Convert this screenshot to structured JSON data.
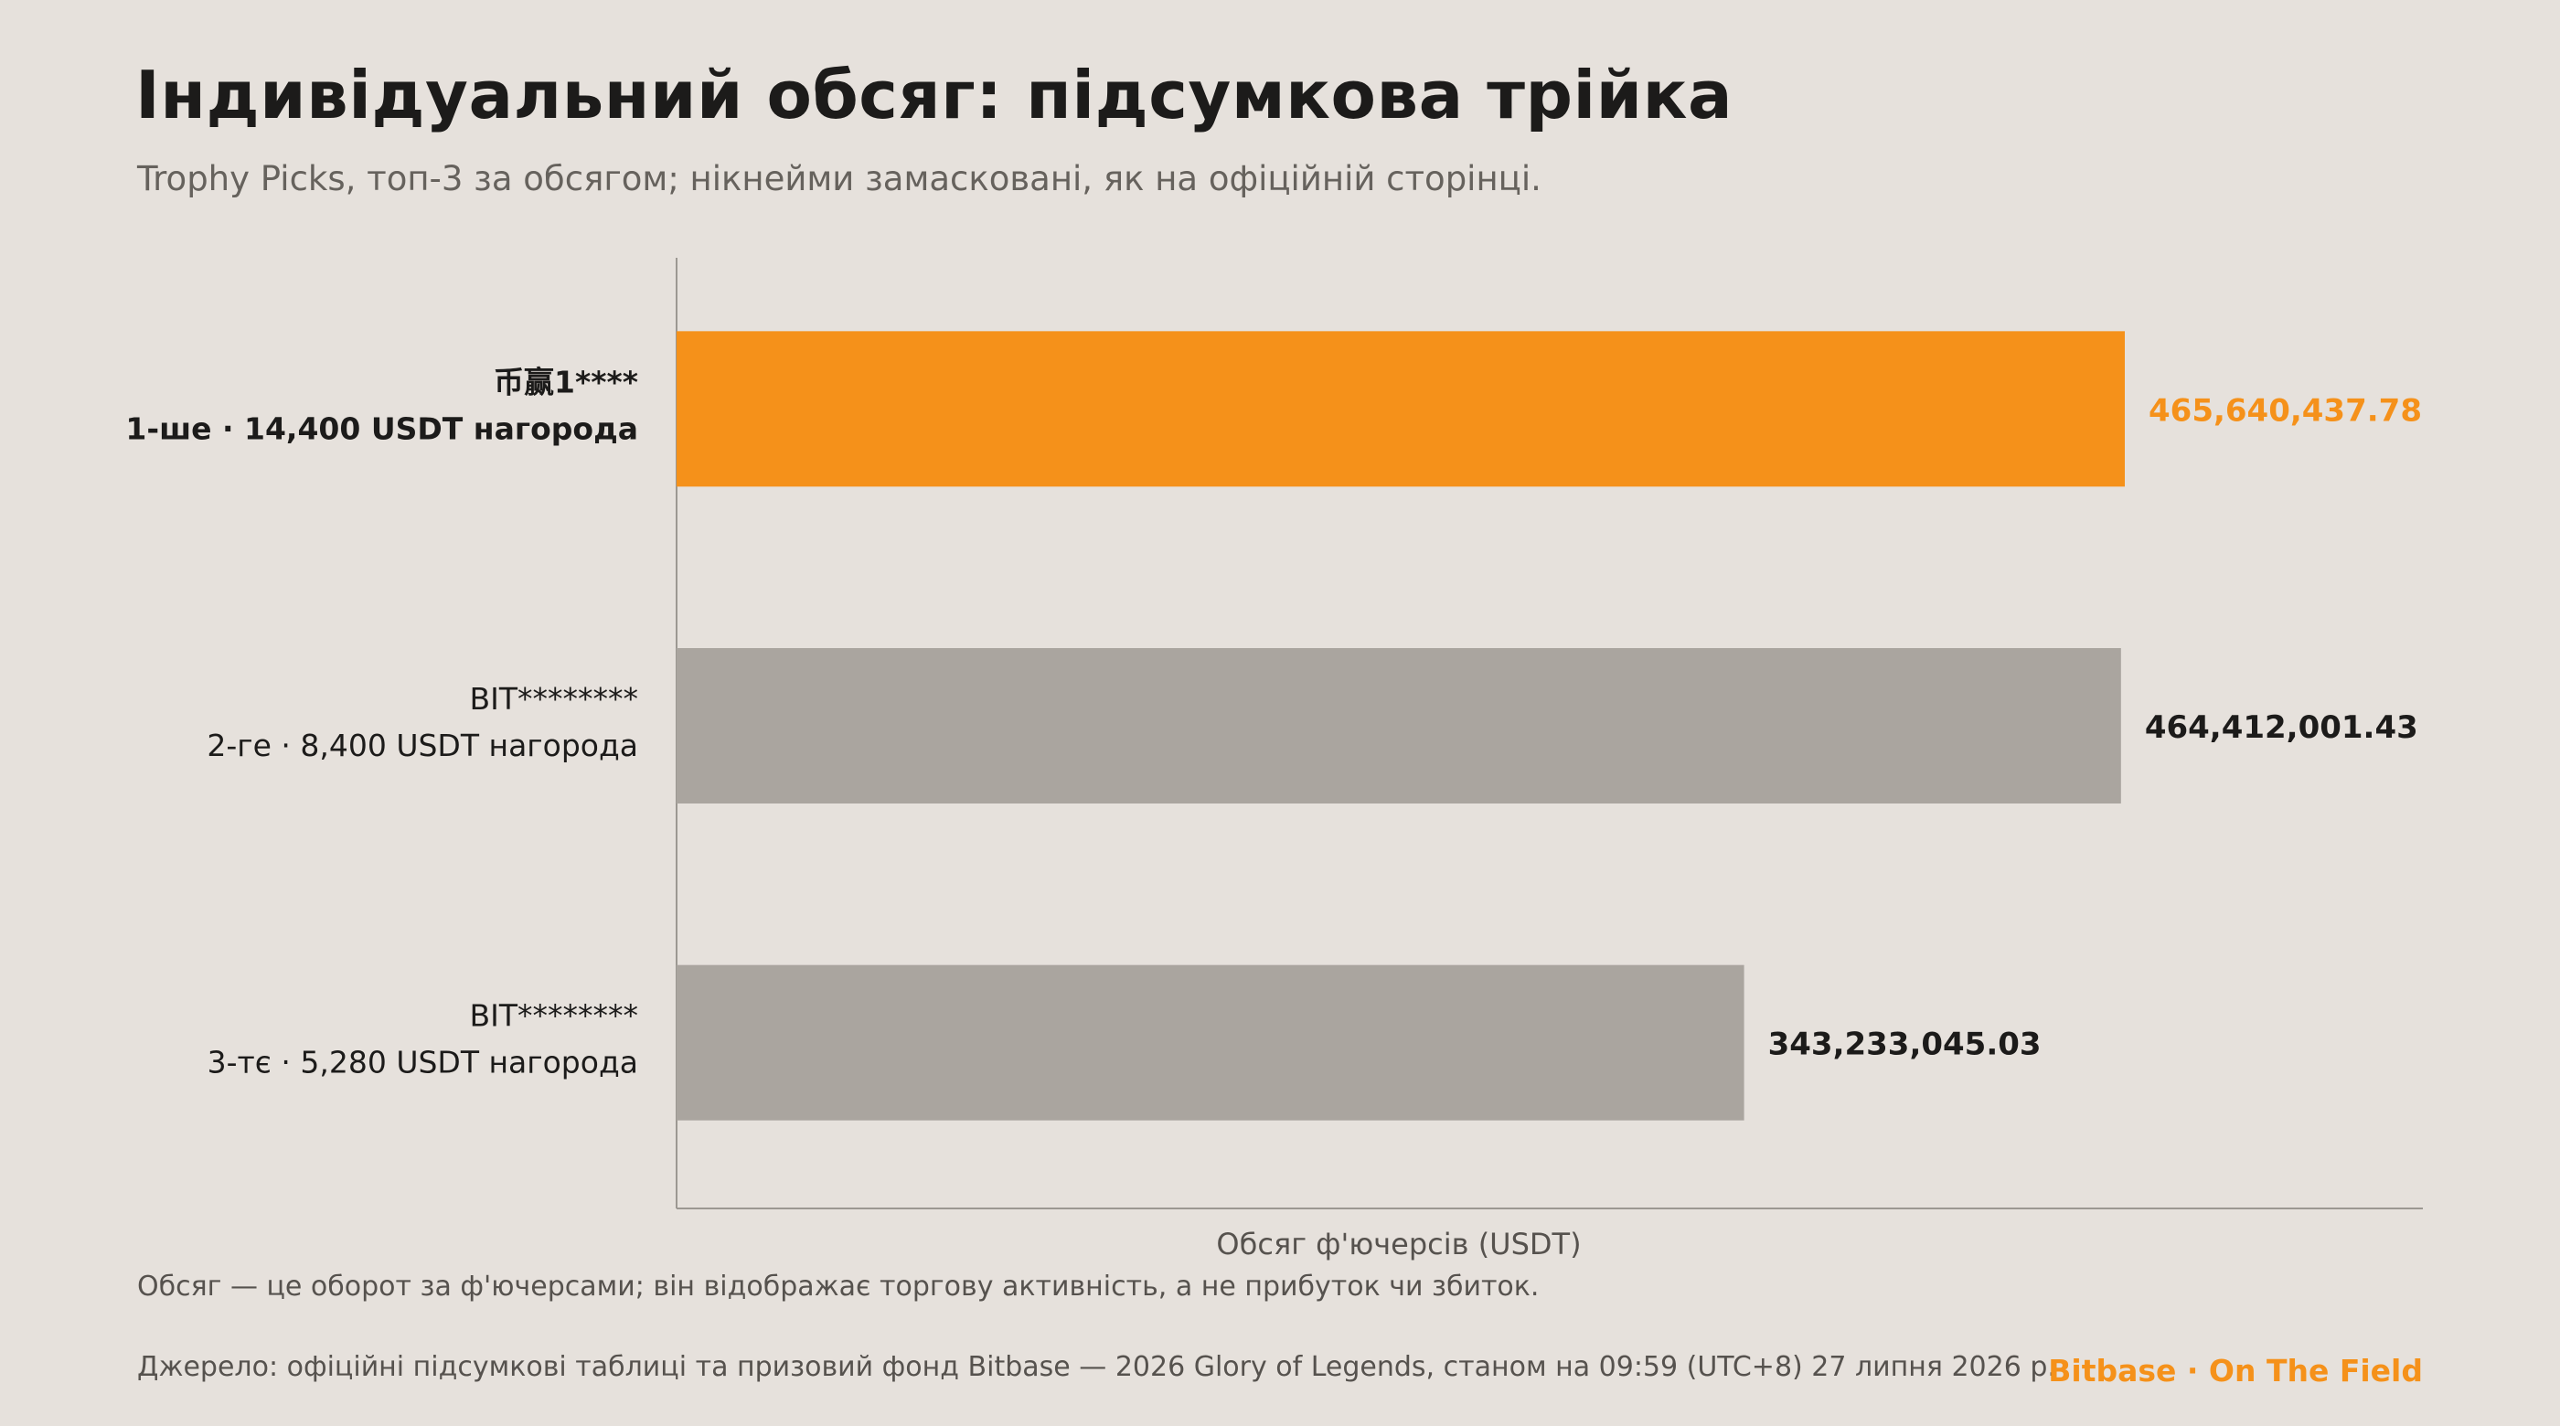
{
  "header": {
    "title": "Індивідуальний обсяг: підсумкова трійка",
    "subtitle": "Trophy Picks, топ-3 за обсягом; нікнейми замасковані, як на офіційній сторінці."
  },
  "footer": {
    "note": "Обсяг — це оборот за ф'ючерсами; він відображає торгову активність, а не прибуток чи збиток.",
    "source": "Джерело: офіційні підсумкові таблиці та призовий фонд Bitbase — 2026 Glory of Legends, станом на 09:59 (UTC+8) 27 липня 2026 р.",
    "brand": "Bitbase · On The Field"
  },
  "colors": {
    "highlight": "#f5911a",
    "bar": "#aaa59f",
    "text_dark": "#1c1b1a",
    "text_muted": "#56524e",
    "axis": "#9c9892",
    "background": "#e6e1dc"
  },
  "chart_data": {
    "type": "bar",
    "orientation": "horizontal",
    "xlabel": "Обсяг ф'ючерсів (USDT)",
    "xlim": [
      0,
      600000000
    ],
    "grid": false,
    "categories": [
      {
        "name": "币赢1****",
        "detail": "1-ше · 14,400 USDT нагорода",
        "highlight": true
      },
      {
        "name": "BIT********",
        "detail": "2-ге · 8,400 USDT нагорода",
        "highlight": false
      },
      {
        "name": "BIT********",
        "detail": "3-тє · 5,280 USDT нагорода",
        "highlight": false
      }
    ],
    "values": [
      465640437.78,
      464412001.43,
      343233045.03
    ],
    "value_labels": [
      "465,640,437.78",
      "464,412,001.43",
      "343,233,045.03"
    ]
  }
}
